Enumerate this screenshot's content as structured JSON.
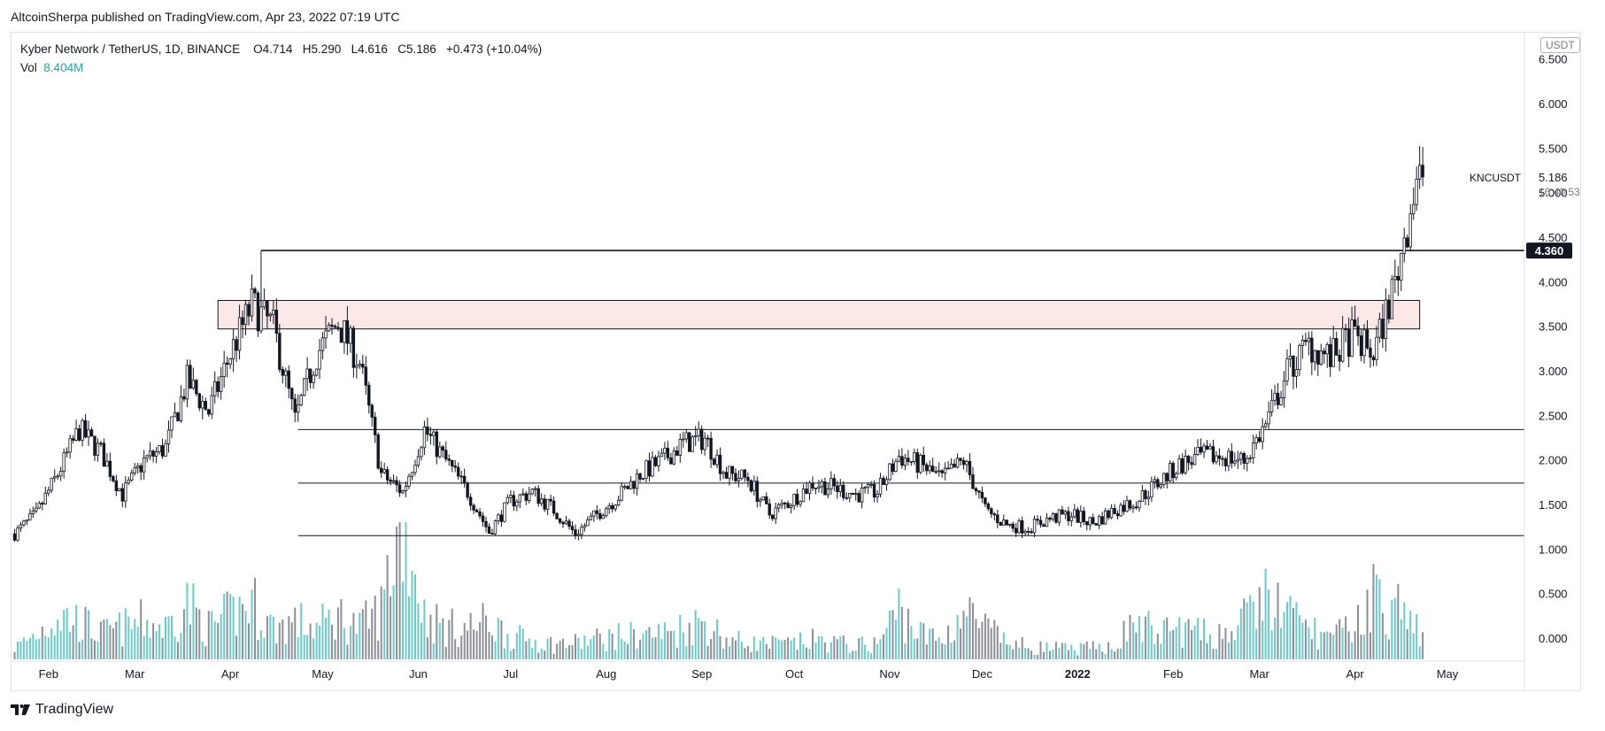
{
  "header": {
    "publisher_line": "AltcoinSherpa published on TradingView.com, Apr 23, 2022 07:19 UTC"
  },
  "legend": {
    "symbol": "Kyber Network / TetherUS, 1D, BINANCE",
    "open_label": "O",
    "open": "4.714",
    "high_label": "H",
    "high": "5.290",
    "low_label": "L",
    "low": "4.616",
    "close_label": "C",
    "close": "5.186",
    "change": "+0.473 (+10.04%)",
    "vol_label": "Vol",
    "vol": "8.404M"
  },
  "currency_badge": "USDT",
  "brand": "TradingView",
  "colors": {
    "candle": "#131722",
    "volume_up": "#4fc3c0",
    "volume_down": "#787b86",
    "zone_fill": "#fde8e8",
    "grid_text": "#131722"
  },
  "chart_data": {
    "type": "candlestick",
    "symbol": "KNCUSDT",
    "interval": "1D",
    "y_axis_ticks": [
      6.5,
      6.0,
      5.5,
      5.0,
      4.5,
      4.0,
      3.5,
      3.0,
      2.5,
      2.0,
      1.5,
      1.0,
      0.5,
      0.0
    ],
    "y_axis_labels": [
      "6.500",
      "6.000",
      "5.500",
      "5.000",
      "4.500",
      "4.000",
      "3.500",
      "3.000",
      "2.500",
      "2.000",
      "1.500",
      "1.000",
      "0.500",
      "0.000"
    ],
    "x_axis_labels": [
      "Feb",
      "Mar",
      "Apr",
      "May",
      "Jun",
      "Jul",
      "Aug",
      "Sep",
      "Oct",
      "Nov",
      "Dec",
      "2022",
      "Feb",
      "Mar",
      "Apr",
      "May"
    ],
    "x_axis_dates": [
      "2021-02-01",
      "2021-03-01",
      "2021-04-01",
      "2021-05-01",
      "2021-06-01",
      "2021-07-01",
      "2021-08-01",
      "2021-09-01",
      "2021-10-01",
      "2021-11-01",
      "2021-12-01",
      "2022-01-01",
      "2022-02-01",
      "2022-03-01",
      "2022-04-01",
      "2022-05-01"
    ],
    "x_range": [
      "2021-01-20",
      "2022-05-26"
    ],
    "y_range": [
      -0.3,
      6.9
    ],
    "grid": false,
    "last_price": {
      "symbol_label": "KNCUSDT",
      "price": "5.186",
      "countdown": "16:40:53"
    },
    "horizontal_levels": [
      {
        "price": 4.36,
        "label": "4.360",
        "start": "2021-04-11",
        "bold": true
      },
      {
        "price": 2.35,
        "start": "2021-04-23"
      },
      {
        "price": 1.75,
        "start": "2021-04-23"
      },
      {
        "price": 1.16,
        "start": "2021-04-23"
      }
    ],
    "zones": [
      {
        "price_low": 3.48,
        "price_high": 3.8,
        "start": "2021-03-28",
        "end": "2022-04-22",
        "fill": "#fde8e8"
      }
    ],
    "closes_weekly": [
      [
        "2021-01-21",
        1.18
      ],
      [
        "2021-01-28",
        1.4
      ],
      [
        "2021-02-04",
        1.85
      ],
      [
        "2021-02-11",
        2.35
      ],
      [
        "2021-02-18",
        2.1
      ],
      [
        "2021-02-25",
        1.62
      ],
      [
        "2021-03-04",
        2.0
      ],
      [
        "2021-03-11",
        2.15
      ],
      [
        "2021-03-18",
        2.9
      ],
      [
        "2021-03-25",
        2.55
      ],
      [
        "2021-04-01",
        3.2
      ],
      [
        "2021-04-08",
        3.75
      ],
      [
        "2021-04-15",
        3.5
      ],
      [
        "2021-04-22",
        2.45
      ],
      [
        "2021-04-29",
        3.2
      ],
      [
        "2021-05-06",
        3.55
      ],
      [
        "2021-05-13",
        3.1
      ],
      [
        "2021-05-20",
        1.85
      ],
      [
        "2021-05-27",
        1.65
      ],
      [
        "2021-06-03",
        2.35
      ],
      [
        "2021-06-10",
        2.0
      ],
      [
        "2021-06-17",
        1.65
      ],
      [
        "2021-06-24",
        1.2
      ],
      [
        "2021-07-01",
        1.55
      ],
      [
        "2021-07-08",
        1.65
      ],
      [
        "2021-07-15",
        1.45
      ],
      [
        "2021-07-22",
        1.18
      ],
      [
        "2021-07-29",
        1.4
      ],
      [
        "2021-08-05",
        1.6
      ],
      [
        "2021-08-12",
        1.85
      ],
      [
        "2021-08-19",
        2.0
      ],
      [
        "2021-08-26",
        2.2
      ],
      [
        "2021-09-02",
        2.25
      ],
      [
        "2021-09-09",
        1.85
      ],
      [
        "2021-09-16",
        1.8
      ],
      [
        "2021-09-23",
        1.4
      ],
      [
        "2021-09-30",
        1.55
      ],
      [
        "2021-10-07",
        1.75
      ],
      [
        "2021-10-14",
        1.7
      ],
      [
        "2021-10-21",
        1.62
      ],
      [
        "2021-10-28",
        1.65
      ],
      [
        "2021-11-04",
        2.05
      ],
      [
        "2021-11-11",
        1.95
      ],
      [
        "2021-11-18",
        1.8
      ],
      [
        "2021-11-25",
        2.0
      ],
      [
        "2021-12-02",
        1.45
      ],
      [
        "2021-12-09",
        1.28
      ],
      [
        "2021-12-16",
        1.25
      ],
      [
        "2021-12-23",
        1.35
      ],
      [
        "2021-12-30",
        1.4
      ],
      [
        "2022-01-06",
        1.3
      ],
      [
        "2022-01-13",
        1.45
      ],
      [
        "2022-01-20",
        1.55
      ],
      [
        "2022-01-27",
        1.75
      ],
      [
        "2022-02-03",
        1.95
      ],
      [
        "2022-02-10",
        2.05
      ],
      [
        "2022-02-17",
        2.05
      ],
      [
        "2022-02-24",
        2.0
      ],
      [
        "2022-03-03",
        2.4
      ],
      [
        "2022-03-10",
        3.0
      ],
      [
        "2022-03-17",
        3.3
      ],
      [
        "2022-03-24",
        3.15
      ],
      [
        "2022-03-31",
        3.4
      ],
      [
        "2022-04-07",
        3.2
      ],
      [
        "2022-04-14",
        4.0
      ],
      [
        "2022-04-21",
        5.186
      ]
    ],
    "volume_m_weekly": [
      [
        "2021-01-21",
        0.9
      ],
      [
        "2021-01-28",
        2.0
      ],
      [
        "2021-02-04",
        3.5
      ],
      [
        "2021-02-11",
        3.0
      ],
      [
        "2021-02-18",
        2.0
      ],
      [
        "2021-02-25",
        2.5
      ],
      [
        "2021-03-04",
        3.0
      ],
      [
        "2021-03-11",
        2.5
      ],
      [
        "2021-03-18",
        4.5
      ],
      [
        "2021-03-25",
        2.5
      ],
      [
        "2021-04-01",
        3.5
      ],
      [
        "2021-04-08",
        4.5
      ],
      [
        "2021-04-15",
        2.5
      ],
      [
        "2021-04-22",
        3.0
      ],
      [
        "2021-04-29",
        2.5
      ],
      [
        "2021-05-06",
        3.5
      ],
      [
        "2021-05-13",
        2.5
      ],
      [
        "2021-05-20",
        4.0
      ],
      [
        "2021-05-27",
        12.0
      ],
      [
        "2021-06-03",
        3.5
      ],
      [
        "2021-06-10",
        2.5
      ],
      [
        "2021-06-17",
        2.5
      ],
      [
        "2021-06-24",
        3.0
      ],
      [
        "2021-07-01",
        1.8
      ],
      [
        "2021-07-08",
        1.5
      ],
      [
        "2021-07-15",
        1.2
      ],
      [
        "2021-07-22",
        1.3
      ],
      [
        "2021-07-29",
        1.6
      ],
      [
        "2021-08-05",
        1.8
      ],
      [
        "2021-08-12",
        2.0
      ],
      [
        "2021-08-19",
        2.0
      ],
      [
        "2021-08-26",
        2.5
      ],
      [
        "2021-09-02",
        3.0
      ],
      [
        "2021-09-09",
        1.6
      ],
      [
        "2021-09-16",
        1.3
      ],
      [
        "2021-09-23",
        1.2
      ],
      [
        "2021-09-30",
        1.2
      ],
      [
        "2021-10-07",
        1.5
      ],
      [
        "2021-10-14",
        1.3
      ],
      [
        "2021-10-21",
        1.1
      ],
      [
        "2021-10-28",
        1.2
      ],
      [
        "2021-11-04",
        4.0
      ],
      [
        "2021-11-11",
        2.0
      ],
      [
        "2021-11-18",
        1.5
      ],
      [
        "2021-11-25",
        3.8
      ],
      [
        "2021-12-02",
        2.5
      ],
      [
        "2021-12-09",
        1.3
      ],
      [
        "2021-12-16",
        1.0
      ],
      [
        "2021-12-23",
        0.9
      ],
      [
        "2021-12-30",
        0.8
      ],
      [
        "2022-01-06",
        0.9
      ],
      [
        "2022-01-13",
        1.2
      ],
      [
        "2022-01-20",
        3.0
      ],
      [
        "2022-01-27",
        2.0
      ],
      [
        "2022-02-03",
        2.5
      ],
      [
        "2022-02-10",
        2.0
      ],
      [
        "2022-02-17",
        2.0
      ],
      [
        "2022-02-24",
        3.0
      ],
      [
        "2022-03-03",
        5.0
      ],
      [
        "2022-03-10",
        3.5
      ],
      [
        "2022-03-17",
        2.5
      ],
      [
        "2022-03-24",
        1.6
      ],
      [
        "2022-03-31",
        2.5
      ],
      [
        "2022-04-07",
        5.0
      ],
      [
        "2022-04-14",
        4.0
      ],
      [
        "2022-04-21",
        2.5
      ]
    ],
    "volume_scale_note_m_per_unit": 15
  }
}
